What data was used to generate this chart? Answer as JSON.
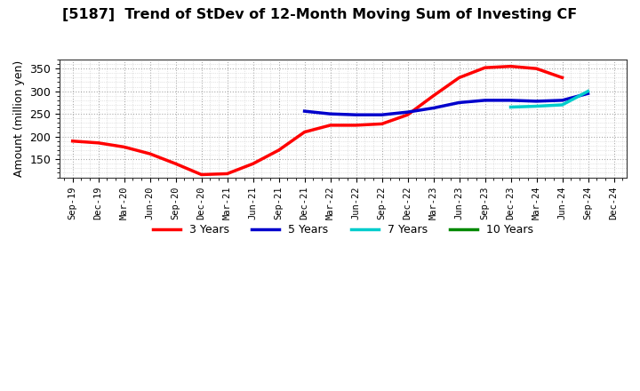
{
  "title": "[5187]  Trend of StDev of 12-Month Moving Sum of Investing CF",
  "ylabel": "Amount (million yen)",
  "background_color": "#ffffff",
  "grid_color": "#aaaaaa",
  "ylim": [
    110,
    370
  ],
  "yticks": [
    150,
    200,
    250,
    300,
    350
  ],
  "x_labels": [
    "Sep-19",
    "Dec-19",
    "Mar-20",
    "Jun-20",
    "Sep-20",
    "Dec-20",
    "Mar-21",
    "Jun-21",
    "Sep-21",
    "Dec-21",
    "Mar-22",
    "Jun-22",
    "Sep-22",
    "Dec-22",
    "Mar-23",
    "Jun-23",
    "Sep-23",
    "Dec-23",
    "Mar-24",
    "Jun-24",
    "Sep-24",
    "Dec-24"
  ],
  "series_3y": {
    "label": "3 Years",
    "color": "#ff0000",
    "data_x": [
      0,
      1,
      2,
      3,
      4,
      5,
      6,
      7,
      8,
      9,
      10,
      11,
      12,
      13,
      14,
      15,
      16,
      17,
      18,
      19
    ],
    "data_y": [
      190,
      186,
      177,
      162,
      140,
      116,
      118,
      140,
      170,
      210,
      225,
      225,
      228,
      248,
      290,
      330,
      352,
      355,
      350,
      330
    ]
  },
  "series_5y": {
    "label": "5 Years",
    "color": "#0000cc",
    "data_x": [
      9,
      10,
      11,
      12,
      13,
      14,
      15,
      16,
      17,
      18,
      19,
      20
    ],
    "data_y": [
      256,
      250,
      248,
      248,
      254,
      263,
      275,
      280,
      280,
      278,
      280,
      295
    ]
  },
  "series_7y": {
    "label": "7 Years",
    "color": "#00cccc",
    "data_x": [
      17,
      18,
      19,
      20
    ],
    "data_y": [
      265,
      267,
      270,
      300
    ]
  },
  "series_10y": {
    "label": "10 Years",
    "color": "#008800",
    "data_x": [],
    "data_y": []
  },
  "legend_colors": [
    "#ff0000",
    "#0000cc",
    "#00cccc",
    "#008800"
  ],
  "legend_labels": [
    "3 Years",
    "5 Years",
    "7 Years",
    "10 Years"
  ]
}
